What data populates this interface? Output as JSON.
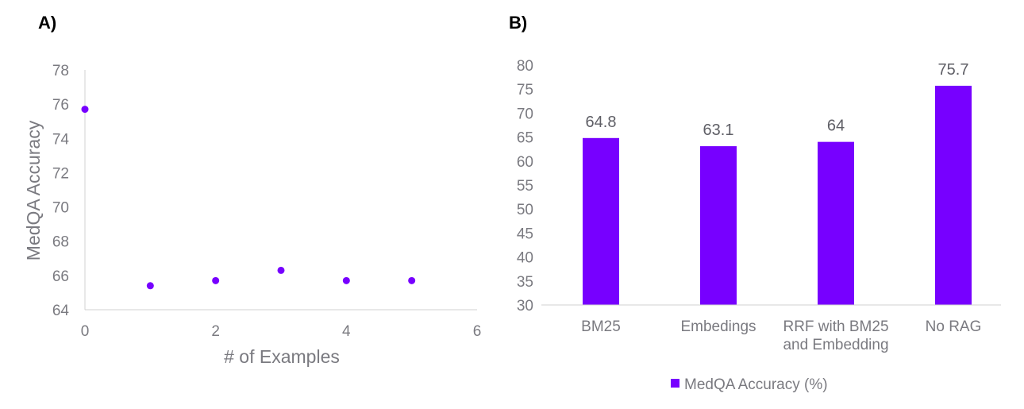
{
  "panels": {
    "a": "A)",
    "b": "B)"
  },
  "colors": {
    "accent": "#7700ff",
    "axis": "#d0d0d0",
    "text": "#7a7a80"
  },
  "chart_data": [
    {
      "type": "scatter",
      "panel": "A)",
      "xlabel": "# of Examples",
      "ylabel": "MedQA  Accuracy",
      "xlim": [
        0,
        6
      ],
      "ylim": [
        64,
        78
      ],
      "xticks": [
        "0",
        "2",
        "4",
        "6"
      ],
      "yticks": [
        "64",
        "66",
        "68",
        "70",
        "72",
        "74",
        "76",
        "78"
      ],
      "x": [
        0,
        1,
        2,
        3,
        4,
        5
      ],
      "y": [
        75.7,
        65.4,
        65.7,
        66.3,
        65.7,
        65.7
      ],
      "grid": false
    },
    {
      "type": "bar",
      "panel": "B)",
      "categories": [
        [
          "BM25"
        ],
        [
          "Embedings"
        ],
        [
          "RRF with BM25",
          "and Embedding"
        ],
        [
          "No RAG"
        ]
      ],
      "values": [
        64.8,
        63.1,
        64,
        75.7
      ],
      "value_labels": [
        "64.8",
        "63.1",
        "64",
        "75.7"
      ],
      "ylim": [
        30,
        80
      ],
      "yticks": [
        "30",
        "35",
        "40",
        "45",
        "50",
        "55",
        "60",
        "65",
        "70",
        "75",
        "80"
      ],
      "legend": {
        "label": "MedQA Accuracy (%)",
        "position": "bottom"
      },
      "grid": false
    }
  ]
}
